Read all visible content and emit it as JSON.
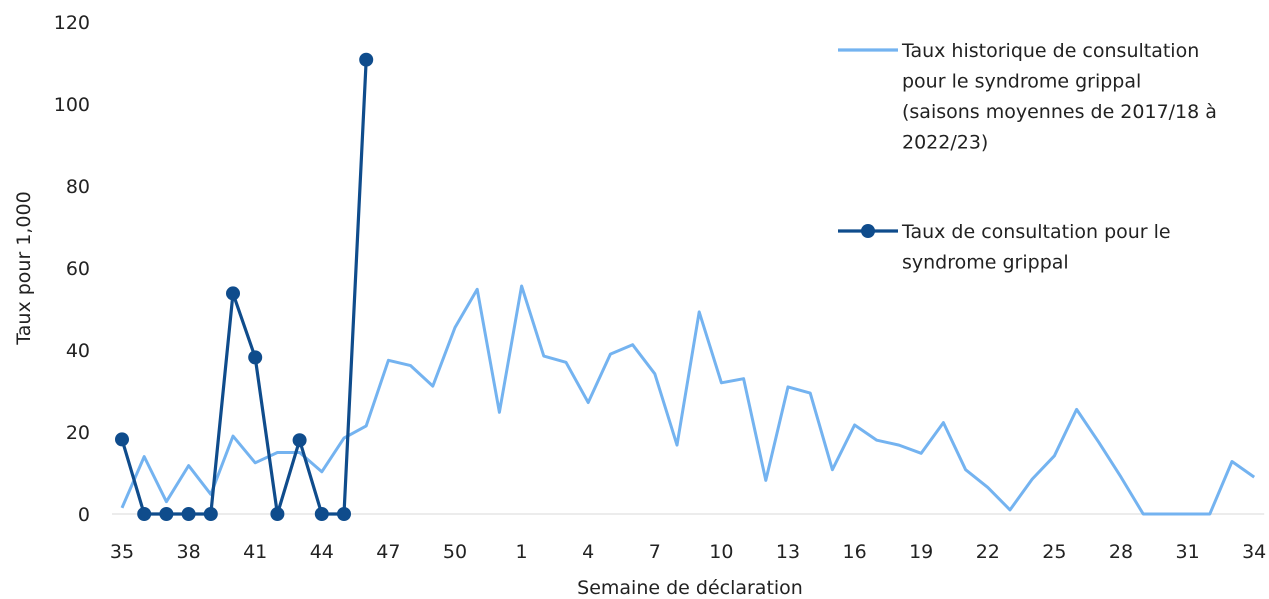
{
  "chart_data": {
    "type": "line",
    "xlabel": "Semaine de déclaration",
    "ylabel": "Taux pour 1,000",
    "ylim": [
      0,
      120
    ],
    "yticks": [
      0,
      20,
      40,
      60,
      80,
      100,
      120
    ],
    "weeks": [
      35,
      36,
      37,
      38,
      39,
      40,
      41,
      42,
      43,
      44,
      45,
      46,
      47,
      48,
      49,
      50,
      51,
      52,
      1,
      2,
      3,
      4,
      5,
      6,
      7,
      8,
      9,
      10,
      11,
      12,
      13,
      14,
      15,
      16,
      17,
      18,
      19,
      20,
      21,
      22,
      23,
      24,
      25,
      26,
      27,
      28,
      29,
      30,
      31,
      32,
      33,
      34
    ],
    "xtick_labels": [
      "35",
      "38",
      "41",
      "44",
      "47",
      "50",
      "1",
      "4",
      "7",
      "10",
      "13",
      "16",
      "19",
      "22",
      "25",
      "28",
      "31",
      "34"
    ],
    "legend_position": "top-right",
    "grid": false,
    "series": [
      {
        "name": "Taux historique de consultation pour le syndrome grippal (saisons moyennes de 2017/18 à 2022/23)",
        "legend_lines": [
          "Taux historique de consultation",
          "pour le syndrome grippal",
          "(saisons moyennes de 2017/18 à",
          "2022/23)"
        ],
        "color": "#74b3f0",
        "markers": false,
        "values": [
          1.5,
          14,
          3,
          11.8,
          4.8,
          19,
          12.5,
          15,
          15,
          10.3,
          18.5,
          21.5,
          37.5,
          36.2,
          31.2,
          45.5,
          54.8,
          24.8,
          55.6,
          38.5,
          37,
          27.2,
          39,
          41.3,
          34.2,
          16.8,
          49.3,
          32,
          33,
          8.2,
          31,
          29.5,
          10.8,
          21.7,
          18,
          16.8,
          14.8,
          22.3,
          10.8,
          6.5,
          1,
          8.5,
          14.2,
          25.5,
          17.5,
          9,
          0,
          0,
          0,
          0,
          12.8,
          9
        ]
      },
      {
        "name": "Taux de consultation pour le syndrome grippal",
        "legend_lines": [
          "Taux de consultation pour le",
          "syndrome grippal"
        ],
        "color": "#0f4c8c",
        "markers": true,
        "values": [
          18.2,
          0,
          0,
          0,
          0,
          53.8,
          38.2,
          0,
          18,
          0,
          0,
          110.8
        ]
      }
    ]
  }
}
